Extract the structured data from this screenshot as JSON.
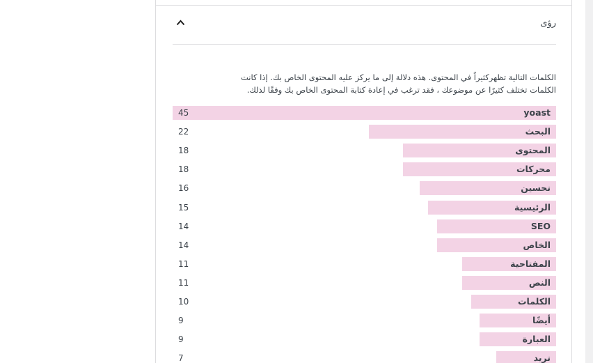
{
  "insights": {
    "title": "رؤى",
    "toggle_icon": "chevron-up-icon",
    "description_lines": [
      "الكلمات التالية تظهركثيراً في المحتوى. هذه دلالة إلى ما يركز عليه المحتوى الخاص بك. إذا كانت",
      "الكلمات تختلف كثيرًا عن موضوعك ، فقد ترغب في إعادة كتابة المحتوى الخاص بك وفقًا لذلك."
    ],
    "bar_color": "#f3d3e5"
  },
  "chart_data": {
    "type": "bar",
    "categories": [
      "yoast",
      "البحث",
      "المحتوى",
      "محركات",
      "تحسين",
      "الرئيسية",
      "SEO",
      "الخاص",
      "المفتاحية",
      "النص",
      "الكلمات",
      "أيضًا",
      "العبارة",
      "تريد"
    ],
    "values": [
      45,
      22,
      18,
      18,
      16,
      15,
      14,
      14,
      11,
      11,
      10,
      9,
      9,
      7
    ],
    "xlim": [
      0,
      45
    ]
  }
}
